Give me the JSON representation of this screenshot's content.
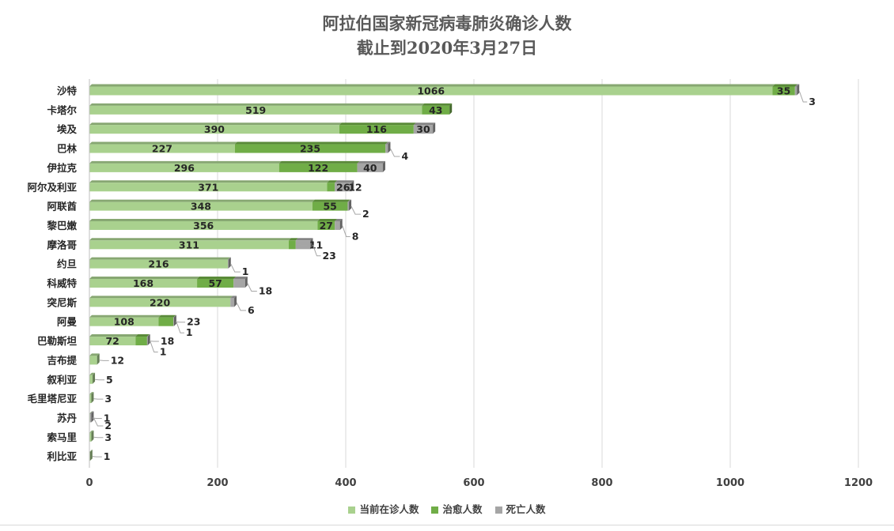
{
  "chart_data": {
    "type": "bar",
    "orientation": "horizontal",
    "stacked": true,
    "title": "阿拉伯国家新冠病毒肺炎确诊人数",
    "subtitle": "截止到2020年3月27日",
    "categories": [
      "沙特",
      "卡塔尔",
      "埃及",
      "巴林",
      "伊拉克",
      "阿尔及利亚",
      "阿联酋",
      "黎巴嫩",
      "摩洛哥",
      "约旦",
      "科威特",
      "突尼斯",
      "阿曼",
      "巴勒斯坦",
      "吉布提",
      "叙利亚",
      "毛里塔尼亚",
      "苏丹",
      "索马里",
      "利比亚"
    ],
    "series": [
      {
        "name": "当前在诊人数",
        "color": "#a9d18e",
        "values": [
          1066,
          519,
          390,
          227,
          296,
          371,
          348,
          356,
          311,
          216,
          168,
          220,
          108,
          72,
          12,
          5,
          3,
          1,
          3,
          1
        ]
      },
      {
        "name": "治愈人数",
        "color": "#70ad47",
        "values": [
          35,
          43,
          116,
          235,
          122,
          12,
          55,
          27,
          11,
          0,
          57,
          0,
          23,
          18,
          0,
          0,
          0,
          0,
          0,
          0
        ]
      },
      {
        "name": "死亡人数",
        "color": "#a5a5a5",
        "values": [
          3,
          0,
          30,
          4,
          40,
          26,
          2,
          8,
          23,
          1,
          18,
          6,
          1,
          1,
          0,
          0,
          0,
          2,
          0,
          0
        ]
      }
    ],
    "xlim": [
      0,
      1200
    ],
    "xticks": [
      "0",
      "200",
      "400",
      "600",
      "800",
      "1000",
      "1200"
    ],
    "grid": true,
    "legend_position": "bottom"
  }
}
